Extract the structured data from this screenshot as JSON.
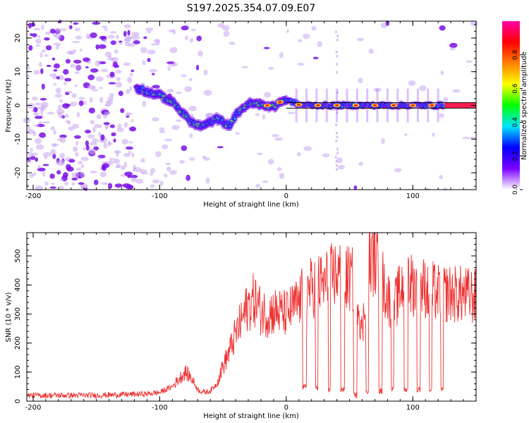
{
  "title": "S197.2025.354.07.09.E07",
  "chart_data": [
    {
      "type": "heatmap",
      "name": "spectrogram",
      "xlabel": "Height of straight line (km)",
      "ylabel": "Frequency (Hz)",
      "xlim": [
        -205,
        150
      ],
      "ylim": [
        -25,
        25
      ],
      "xticks": [
        -200,
        -100,
        0,
        100
      ],
      "xtick_labels": [
        "-200",
        "-100",
        "0",
        "100"
      ],
      "yticks": [
        -20,
        -10,
        0,
        10,
        20
      ],
      "ytick_labels": [
        "-20",
        "-10",
        "0",
        "10",
        "20"
      ],
      "colorbar": {
        "label": "Normalized spectral amplitude",
        "range": [
          0,
          1
        ],
        "ticks": [
          0,
          0.2,
          0.4,
          0.6,
          0.8
        ],
        "tick_labels": [
          "0.0",
          "0.2",
          "0.4",
          "0.6",
          "0.8"
        ],
        "colors": [
          "#ffffff",
          "#7a00ff",
          "#0000ff",
          "#00e5ff",
          "#00ff00",
          "#ffff00",
          "#ff8000",
          "#ff0000",
          "#ff00aa"
        ]
      },
      "carrier_track": {
        "x": [
          -115,
          -110,
          -100,
          -95,
          -90,
          -85,
          -80,
          -75,
          -70,
          -65,
          -60,
          -55,
          -50,
          -45,
          -40,
          -35,
          -30,
          -25,
          -20,
          -15,
          -10,
          -5,
          0,
          5,
          10,
          20,
          40,
          60,
          80,
          100,
          120,
          150
        ],
        "y": [
          5,
          4,
          3,
          2,
          1,
          -1,
          -3,
          -5,
          -6,
          -6,
          -5,
          -4,
          -5,
          -6,
          -3,
          -1,
          0.5,
          0.5,
          0,
          0,
          -0.5,
          1,
          1.5,
          1,
          0.2,
          0,
          0,
          0,
          0,
          0,
          0,
          0
        ]
      },
      "bright_peaks_x": [
        -15,
        -5,
        10,
        25,
        40,
        55,
        70,
        85,
        100,
        115
      ]
    },
    {
      "type": "line",
      "name": "snr",
      "xlabel": "Height of straight line (km)",
      "ylabel": "SNR (10 * v/v)",
      "xlim": [
        -205,
        150
      ],
      "ylim": [
        0,
        580
      ],
      "xticks": [
        -200,
        -100,
        0,
        100
      ],
      "xtick_labels": [
        "-200",
        "-100",
        "0",
        "100"
      ],
      "yticks": [
        0,
        100,
        200,
        300,
        400,
        500
      ],
      "ytick_labels": [
        "0",
        "100",
        "200",
        "300",
        "400",
        "500"
      ],
      "color": "#ee3333",
      "envelope": {
        "x": [
          -205,
          -150,
          -110,
          -100,
          -90,
          -80,
          -75,
          -70,
          -65,
          -60,
          -55,
          -50,
          -45,
          -40,
          -35,
          -30,
          -25,
          -20,
          -15,
          -10,
          0,
          10,
          15,
          25,
          30,
          35,
          40,
          50,
          55,
          60,
          65,
          70,
          75,
          80,
          85,
          90,
          95,
          100,
          110,
          120,
          130,
          150
        ],
        "y": [
          20,
          20,
          25,
          30,
          50,
          100,
          80,
          40,
          30,
          35,
          60,
          120,
          170,
          230,
          280,
          330,
          350,
          310,
          300,
          310,
          300,
          340,
          380,
          400,
          400,
          430,
          440,
          420,
          410,
          230,
          480,
          500,
          430,
          360,
          320,
          380,
          440,
          400,
          390,
          370,
          370,
          360
        ]
      },
      "dropouts": [
        {
          "x0": 13,
          "x1": 16,
          "y": 50
        },
        {
          "x0": 23,
          "x1": 25,
          "y": 45
        },
        {
          "x0": 33,
          "x1": 35,
          "y": 40
        },
        {
          "x0": 43,
          "x1": 46,
          "y": 40
        },
        {
          "x0": 53,
          "x1": 56,
          "y": 20
        },
        {
          "x0": 63,
          "x1": 65,
          "y": 30
        },
        {
          "x0": 73,
          "x1": 76,
          "y": 35
        },
        {
          "x0": 83,
          "x1": 85,
          "y": 40
        },
        {
          "x0": 93,
          "x1": 96,
          "y": 40
        },
        {
          "x0": 103,
          "x1": 106,
          "y": 40
        },
        {
          "x0": 113,
          "x1": 115,
          "y": 40
        },
        {
          "x0": 122,
          "x1": 124,
          "y": 40
        }
      ]
    }
  ]
}
